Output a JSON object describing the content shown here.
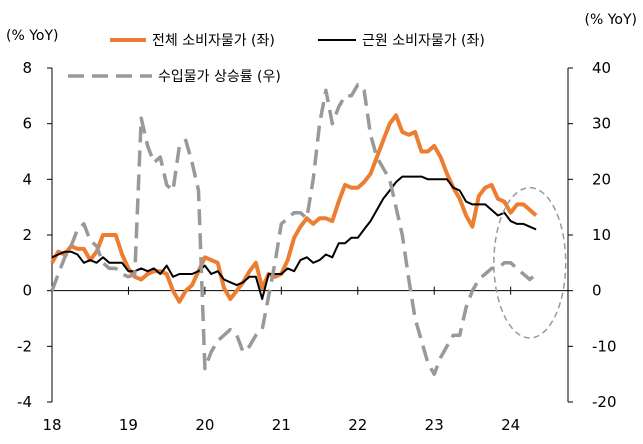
{
  "chart_data": {
    "type": "line",
    "left_axis_unit": "(% YoY)",
    "right_axis_unit": "(% YoY)",
    "x_ticks": [
      "18",
      "19",
      "20",
      "21",
      "22",
      "23",
      "24"
    ],
    "x_range": [
      2018.0,
      2024.75
    ],
    "ylim_left": [
      -4,
      8
    ],
    "yticks_left": [
      -4,
      -2,
      0,
      2,
      4,
      6,
      8
    ],
    "ylim_right": [
      -20,
      40
    ],
    "yticks_right": [
      -20,
      -10,
      0,
      10,
      20,
      30,
      40
    ],
    "series": [
      {
        "name": "전체 소비자물가 (좌)",
        "axis": "left",
        "color": "#ED7D31",
        "style": "solid",
        "x": [
          2018.0,
          2018.083,
          2018.167,
          2018.25,
          2018.333,
          2018.417,
          2018.5,
          2018.583,
          2018.667,
          2018.75,
          2018.833,
          2018.917,
          2019.0,
          2019.083,
          2019.167,
          2019.25,
          2019.333,
          2019.417,
          2019.5,
          2019.583,
          2019.667,
          2019.75,
          2019.833,
          2019.917,
          2020.0,
          2020.083,
          2020.167,
          2020.25,
          2020.333,
          2020.417,
          2020.5,
          2020.583,
          2020.667,
          2020.75,
          2020.833,
          2020.917,
          2021.0,
          2021.083,
          2021.167,
          2021.25,
          2021.333,
          2021.417,
          2021.5,
          2021.583,
          2021.667,
          2021.75,
          2021.833,
          2021.917,
          2022.0,
          2022.083,
          2022.167,
          2022.25,
          2022.333,
          2022.417,
          2022.5,
          2022.583,
          2022.667,
          2022.75,
          2022.833,
          2022.917,
          2023.0,
          2023.083,
          2023.167,
          2023.25,
          2023.333,
          2023.417,
          2023.5,
          2023.583,
          2023.667,
          2023.75,
          2023.833,
          2023.917,
          2024.0,
          2024.083,
          2024.167,
          2024.25,
          2024.333
        ],
        "values": [
          1.0,
          1.4,
          1.3,
          1.6,
          1.5,
          1.5,
          1.1,
          1.4,
          2.0,
          2.0,
          2.0,
          1.3,
          0.8,
          0.5,
          0.4,
          0.6,
          0.7,
          0.7,
          0.6,
          0.0,
          -0.4,
          0.0,
          0.2,
          0.7,
          1.2,
          1.1,
          1.0,
          0.1,
          -0.3,
          0.0,
          0.3,
          0.7,
          1.0,
          0.1,
          0.6,
          0.5,
          0.6,
          1.1,
          1.9,
          2.3,
          2.6,
          2.4,
          2.6,
          2.6,
          2.5,
          3.2,
          3.8,
          3.7,
          3.7,
          3.9,
          4.2,
          4.8,
          5.4,
          6.0,
          6.3,
          5.7,
          5.6,
          5.7,
          5.0,
          5.0,
          5.2,
          4.8,
          4.2,
          3.7,
          3.3,
          2.7,
          2.3,
          3.4,
          3.7,
          3.8,
          3.3,
          3.2,
          2.8,
          3.1,
          3.1,
          2.9,
          2.7
        ]
      },
      {
        "name": "근원 소비자물가 (좌)",
        "axis": "left",
        "color": "#000000",
        "style": "solid",
        "x": [
          2018.0,
          2018.083,
          2018.167,
          2018.25,
          2018.333,
          2018.417,
          2018.5,
          2018.583,
          2018.667,
          2018.75,
          2018.833,
          2018.917,
          2019.0,
          2019.083,
          2019.167,
          2019.25,
          2019.333,
          2019.417,
          2019.5,
          2019.583,
          2019.667,
          2019.75,
          2019.833,
          2019.917,
          2020.0,
          2020.083,
          2020.167,
          2020.25,
          2020.333,
          2020.417,
          2020.5,
          2020.583,
          2020.667,
          2020.75,
          2020.833,
          2020.917,
          2021.0,
          2021.083,
          2021.167,
          2021.25,
          2021.333,
          2021.417,
          2021.5,
          2021.583,
          2021.667,
          2021.75,
          2021.833,
          2021.917,
          2022.0,
          2022.083,
          2022.167,
          2022.25,
          2022.333,
          2022.417,
          2022.5,
          2022.583,
          2022.667,
          2022.75,
          2022.833,
          2022.917,
          2023.0,
          2023.083,
          2023.167,
          2023.25,
          2023.333,
          2023.417,
          2023.5,
          2023.583,
          2023.667,
          2023.75,
          2023.833,
          2023.917,
          2024.0,
          2024.083,
          2024.167,
          2024.25,
          2024.333
        ],
        "values": [
          1.2,
          1.3,
          1.4,
          1.4,
          1.3,
          1.0,
          1.1,
          1.0,
          1.2,
          1.0,
          1.0,
          1.0,
          0.7,
          0.7,
          0.8,
          0.7,
          0.8,
          0.6,
          0.9,
          0.5,
          0.6,
          0.6,
          0.6,
          0.7,
          0.9,
          0.6,
          0.7,
          0.4,
          0.3,
          0.2,
          0.3,
          0.5,
          0.5,
          -0.3,
          0.6,
          0.6,
          0.6,
          0.8,
          0.7,
          1.1,
          1.2,
          1.0,
          1.1,
          1.3,
          1.2,
          1.7,
          1.7,
          1.9,
          1.9,
          2.2,
          2.5,
          2.9,
          3.3,
          3.6,
          3.9,
          4.1,
          4.1,
          4.1,
          4.1,
          4.0,
          4.0,
          4.0,
          4.0,
          3.7,
          3.6,
          3.2,
          3.1,
          3.1,
          3.1,
          2.9,
          2.7,
          2.8,
          2.5,
          2.4,
          2.4,
          2.3,
          2.2
        ]
      },
      {
        "name": "수입물가 상승률 (우)",
        "axis": "right",
        "color": "#999999",
        "style": "dashed",
        "x": [
          2018.0,
          2018.083,
          2018.167,
          2018.25,
          2018.333,
          2018.417,
          2018.5,
          2018.583,
          2018.667,
          2018.75,
          2018.833,
          2018.917,
          2019.0,
          2019.083,
          2019.167,
          2019.25,
          2019.333,
          2019.417,
          2019.5,
          2019.583,
          2019.667,
          2019.75,
          2019.833,
          2019.917,
          2020.0,
          2020.083,
          2020.167,
          2020.25,
          2020.333,
          2020.417,
          2020.5,
          2020.583,
          2020.667,
          2020.75,
          2020.833,
          2020.917,
          2021.0,
          2021.083,
          2021.167,
          2021.25,
          2021.333,
          2021.417,
          2021.5,
          2021.583,
          2021.667,
          2021.75,
          2021.833,
          2021.917,
          2022.0,
          2022.083,
          2022.167,
          2022.25,
          2022.333,
          2022.417,
          2022.5,
          2022.583,
          2022.667,
          2022.75,
          2022.833,
          2022.917,
          2023.0,
          2023.083,
          2023.167,
          2023.25,
          2023.333,
          2023.417,
          2023.5,
          2023.583,
          2023.667,
          2023.75,
          2023.833,
          2023.917,
          2024.0,
          2024.083,
          2024.167,
          2024.25,
          2024.333
        ],
        "values": [
          0.0,
          3.0,
          6.0,
          8.0,
          11.0,
          12.0,
          9.0,
          8.0,
          5.0,
          4.0,
          4.0,
          3.0,
          2.5,
          3.0,
          31.0,
          26.0,
          23.0,
          24.0,
          19.0,
          18.0,
          26.0,
          27.0,
          23.0,
          18.0,
          -14.0,
          -11.0,
          -9.0,
          -8.0,
          -7.0,
          -8.0,
          -11.0,
          -10.0,
          -8.0,
          -7.0,
          -1.0,
          5.0,
          12.0,
          13.0,
          14.0,
          14.0,
          13.0,
          20.0,
          30.0,
          36.0,
          30.0,
          33.0,
          35.0,
          35.0,
          37.0,
          36.0,
          28.0,
          24.0,
          22.0,
          20.0,
          15.0,
          10.0,
          2.0,
          -5.0,
          -9.0,
          -13.0,
          -15.0,
          -12.0,
          -10.0,
          -8.0,
          -8.0,
          -3.0,
          0.0,
          2.0,
          3.0,
          4.0,
          4.0,
          5.0,
          5.0,
          4.0,
          3.0,
          2.0,
          3.0
        ]
      }
    ],
    "annotations": [
      {
        "type": "dashed-ellipse",
        "center_x": 2024.25,
        "center_y_left": 1.0,
        "radius_x": 0.47,
        "radius_y_left": 2.7
      }
    ]
  }
}
